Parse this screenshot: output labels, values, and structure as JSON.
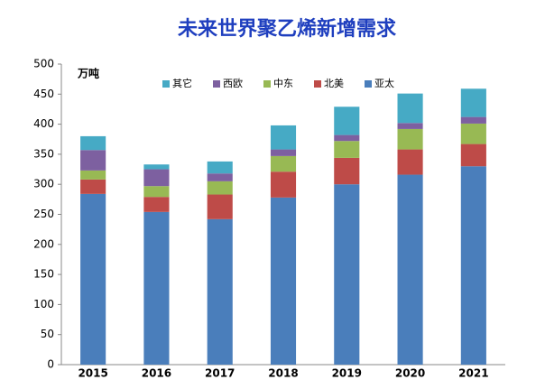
{
  "chart_data": {
    "type": "stacked_bar",
    "title": "未来世界聚乙烯新增需求",
    "y_unit": "万吨",
    "categories": [
      "2015",
      "2016",
      "2017",
      "2018",
      "2019",
      "2020",
      "2021"
    ],
    "series": [
      {
        "name": "其它",
        "color": "#46aac5",
        "values": [
          23,
          8,
          20,
          40,
          47,
          49,
          47
        ]
      },
      {
        "name": "西欧",
        "color": "#7d60a0",
        "values": [
          34,
          28,
          13,
          11,
          10,
          10,
          11
        ]
      },
      {
        "name": "中东",
        "color": "#98b954",
        "values": [
          15,
          18,
          22,
          26,
          28,
          34,
          34
        ]
      },
      {
        "name": "北美",
        "color": "#be4b48",
        "values": [
          24,
          25,
          41,
          43,
          44,
          42,
          37
        ]
      },
      {
        "name": "亚太",
        "color": "#4a7ebb",
        "values": [
          284,
          254,
          242,
          278,
          300,
          316,
          330
        ]
      }
    ],
    "ylim": [
      0,
      500
    ],
    "yticks": [
      0,
      50,
      100,
      150,
      200,
      250,
      300,
      350,
      400,
      450,
      500
    ],
    "legend": "top"
  }
}
